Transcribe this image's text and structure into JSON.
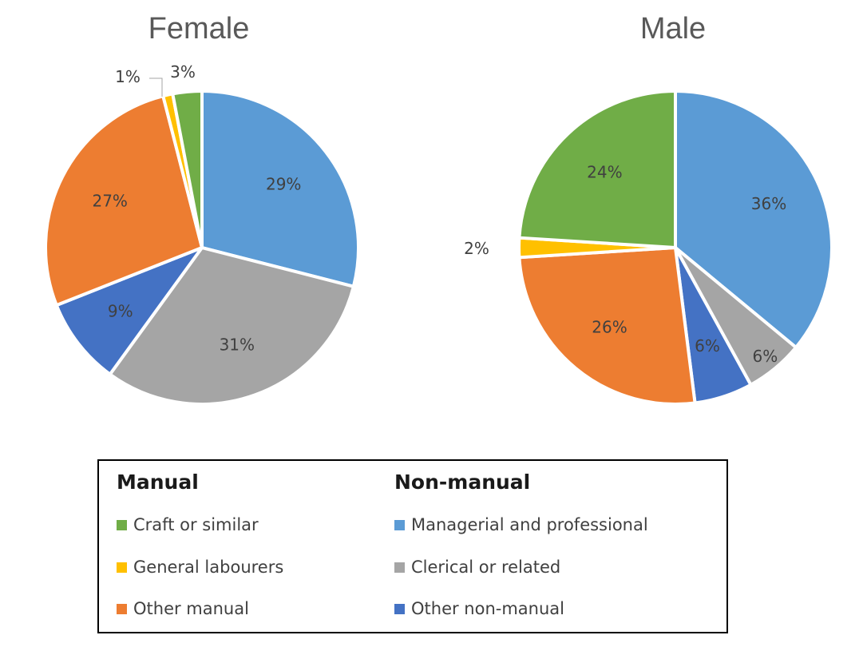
{
  "colors": {
    "craft": "#70ad47",
    "labourers": "#ffc000",
    "other_manual": "#ed7d31",
    "managerial": "#5b9bd5",
    "clerical": "#a5a5a5",
    "other_nonmanual": "#4472c4"
  },
  "chart_data": [
    {
      "type": "pie",
      "title": "Female",
      "slices": [
        {
          "category": "Managerial and professional",
          "value": 29,
          "label": "29%",
          "color_key": "managerial"
        },
        {
          "category": "Clerical or related",
          "value": 31,
          "label": "31%",
          "color_key": "clerical"
        },
        {
          "category": "Other non-manual",
          "value": 9,
          "label": "9%",
          "color_key": "other_nonmanual"
        },
        {
          "category": "Other manual",
          "value": 27,
          "label": "27%",
          "color_key": "other_manual"
        },
        {
          "category": "General labourers",
          "value": 1,
          "label": "1%",
          "color_key": "labourers"
        },
        {
          "category": "Craft or similar",
          "value": 3,
          "label": "3%",
          "color_key": "craft"
        }
      ]
    },
    {
      "type": "pie",
      "title": "Male",
      "slices": [
        {
          "category": "Managerial and professional",
          "value": 36,
          "label": "36%",
          "color_key": "managerial"
        },
        {
          "category": "Clerical or related",
          "value": 6,
          "label": "6%",
          "color_key": "clerical"
        },
        {
          "category": "Other non-manual",
          "value": 6,
          "label": "6%",
          "color_key": "other_nonmanual"
        },
        {
          "category": "Other manual",
          "value": 26,
          "label": "26%",
          "color_key": "other_manual"
        },
        {
          "category": "General labourers",
          "value": 2,
          "label": "2%",
          "color_key": "labourers"
        },
        {
          "category": "Craft or similar",
          "value": 24,
          "label": "24%",
          "color_key": "craft"
        }
      ]
    }
  ],
  "legend": {
    "manual_heading": "Manual",
    "nonmanual_heading": "Non-manual",
    "manual_items": [
      {
        "label": "Craft or similar",
        "color_key": "craft"
      },
      {
        "label": "General labourers",
        "color_key": "labourers"
      },
      {
        "label": "Other manual",
        "color_key": "other_manual"
      }
    ],
    "nonmanual_items": [
      {
        "label": "Managerial and professional",
        "color_key": "managerial"
      },
      {
        "label": "Clerical or related",
        "color_key": "clerical"
      },
      {
        "label": "Other non-manual",
        "color_key": "other_nonmanual"
      }
    ]
  }
}
